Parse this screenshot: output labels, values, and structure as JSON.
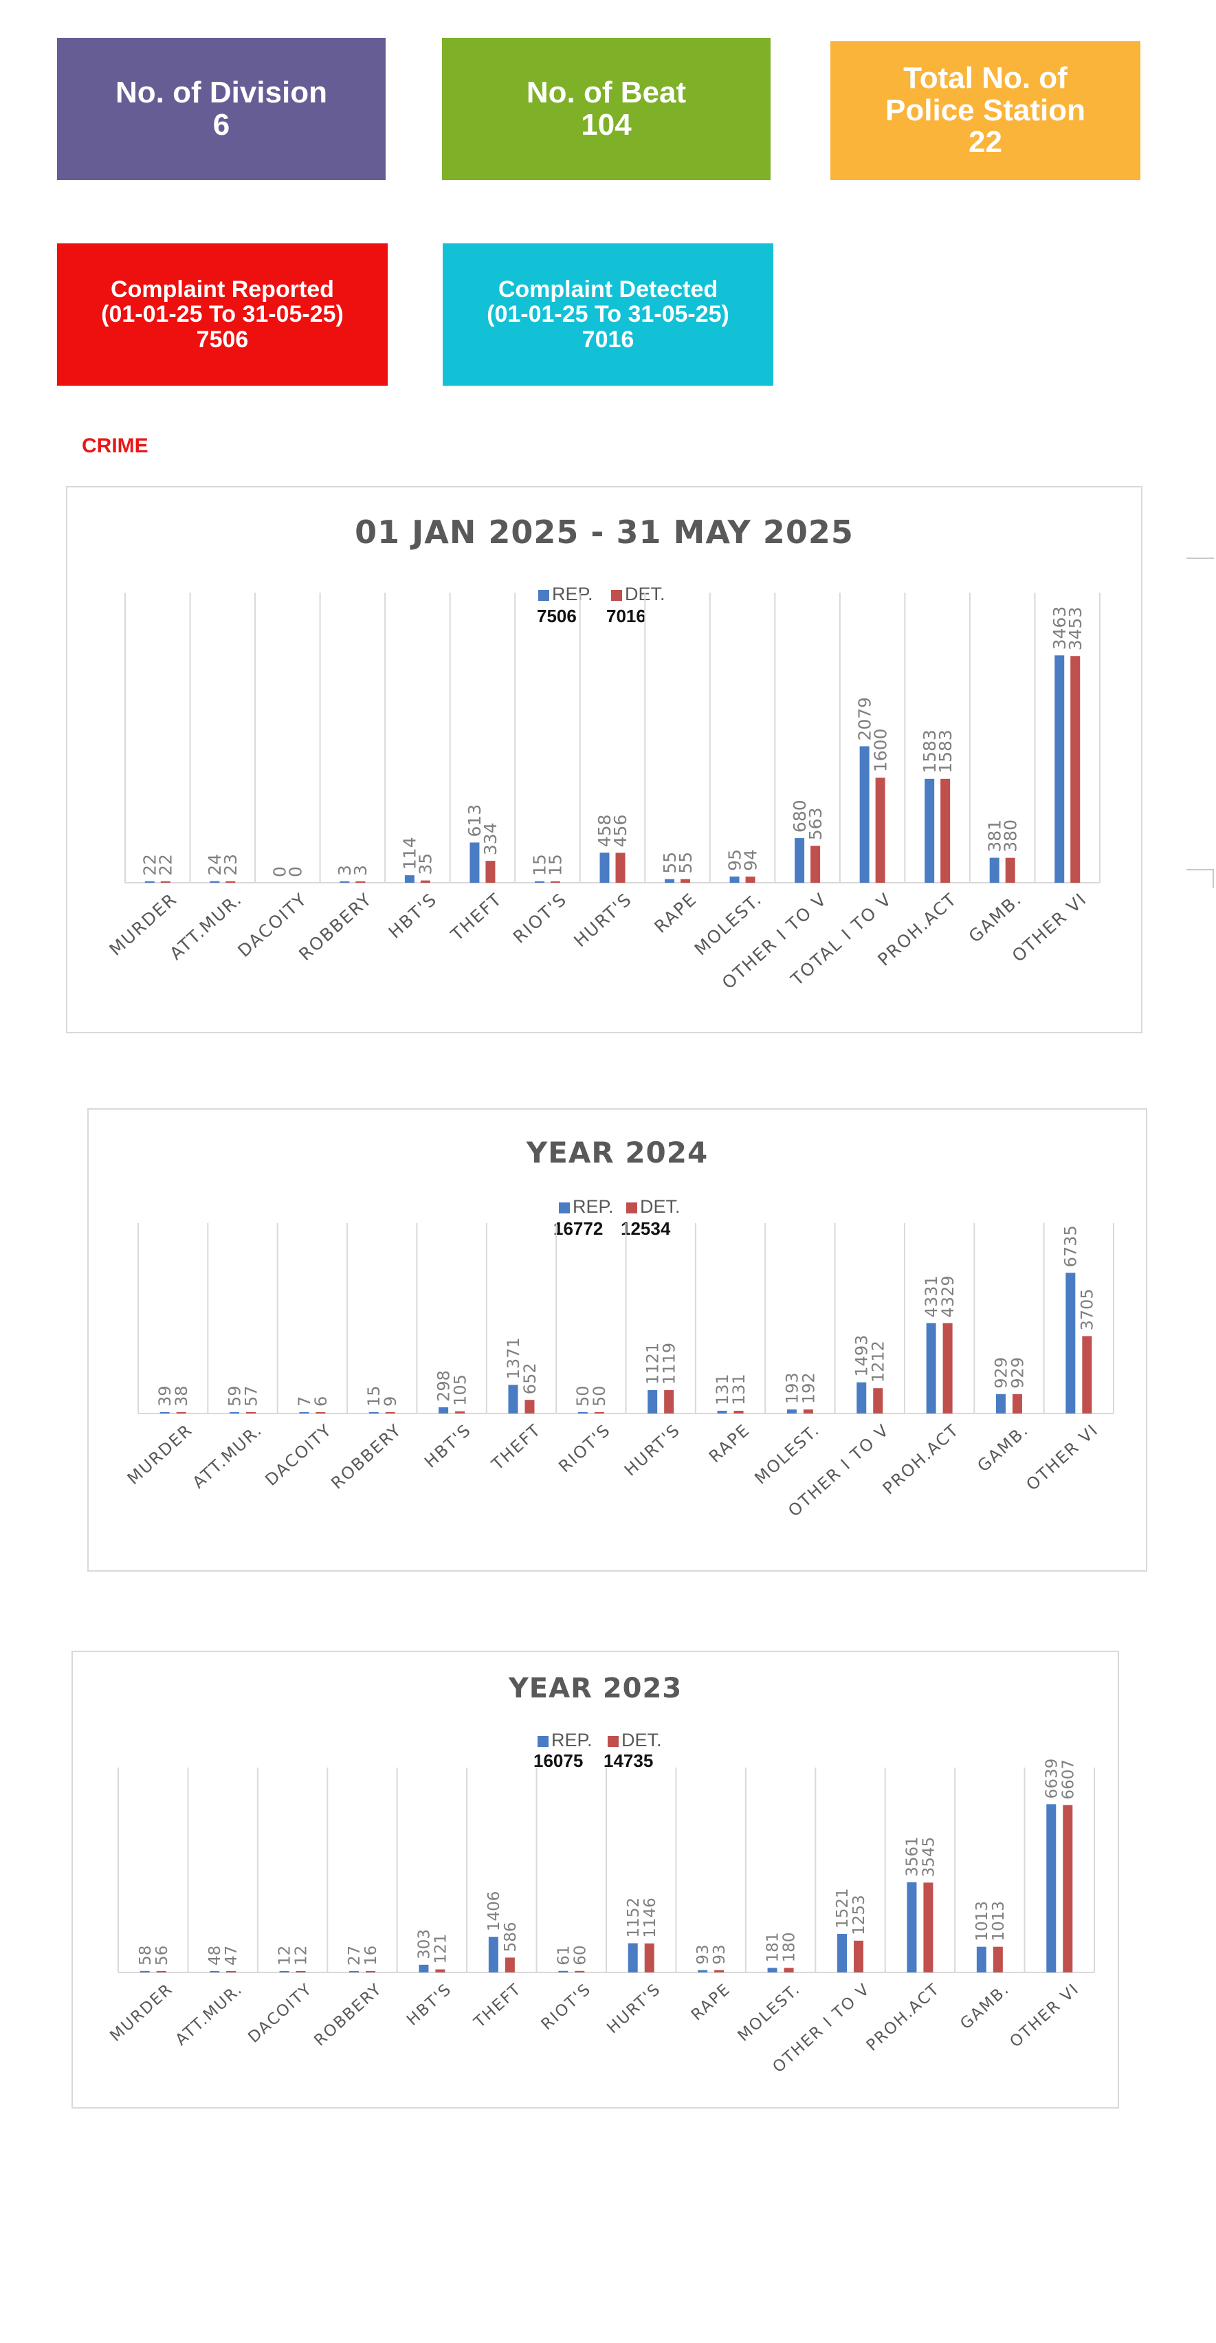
{
  "cards": {
    "division": {
      "lines": [
        "No. of Division",
        "6"
      ],
      "color": "#675d95"
    },
    "beat": {
      "lines": [
        "No. of Beat",
        "104"
      ],
      "color": "#7eb028"
    },
    "station": {
      "lines": [
        "Total No. of",
        "Police Station",
        "22"
      ],
      "color": "#fbb43a"
    },
    "reported": {
      "lines": [
        "Complaint Reported",
        "(01-01-25 To 31-05-25)",
        "7506"
      ],
      "color": "#ee0f0f"
    },
    "detected": {
      "lines": [
        "Complaint Detected",
        "(01-01-25 To 31-05-25)",
        "7016"
      ],
      "color": "#13c1d6"
    }
  },
  "section_label": "CRIME",
  "colors": {
    "rep": "#4a7cc4",
    "det": "#c0504d",
    "label": "#7f7f7f",
    "grid": "#d9d9d9"
  },
  "chart_data": [
    {
      "type": "bar",
      "title": "01 JAN 2025 - 31 MAY 2025",
      "categories": [
        "MURDER",
        "ATT.MUR.",
        "DACOITY",
        "ROBBERY",
        "HBT'S",
        "THEFT",
        "RIOT'S",
        "HURT'S",
        "RAPE",
        "MOLEST.",
        "OTHER I TO V",
        "TOTAL I TO V",
        "PROH.ACT",
        "GAMB.",
        "OTHER VI"
      ],
      "series": [
        {
          "name": "REP.",
          "total": "7506",
          "values": [
            22,
            24,
            0,
            3,
            114,
            613,
            15,
            458,
            55,
            95,
            680,
            2079,
            1583,
            381,
            3463
          ]
        },
        {
          "name": "DET.",
          "total": "7016",
          "values": [
            22,
            23,
            0,
            3,
            35,
            334,
            15,
            456,
            55,
            94,
            563,
            1600,
            1583,
            380,
            3453
          ]
        }
      ],
      "xlabel": "",
      "ylabel": "",
      "ylim": [
        0,
        4000
      ],
      "grid": "vertical",
      "legend": "top-center"
    },
    {
      "type": "bar",
      "title": "YEAR 2024",
      "categories": [
        "MURDER",
        "ATT.MUR.",
        "DACOITY",
        "ROBBERY",
        "HBT'S",
        "THEFT",
        "RIOT'S",
        "HURT'S",
        "RAPE",
        "MOLEST.",
        "OTHER I TO V",
        "PROH.ACT",
        "GAMB.",
        "OTHER VI"
      ],
      "series": [
        {
          "name": "REP.",
          "total": "16772",
          "values": [
            39,
            59,
            7,
            15,
            298,
            1371,
            50,
            1121,
            131,
            193,
            1493,
            4331,
            929,
            6735
          ]
        },
        {
          "name": "DET.",
          "total": "12534",
          "values": [
            38,
            57,
            6,
            9,
            105,
            652,
            50,
            1119,
            131,
            192,
            1212,
            4329,
            929,
            3705
          ]
        }
      ],
      "xlabel": "",
      "ylabel": "",
      "ylim": [
        0,
        7800
      ],
      "grid": "vertical",
      "legend": "top-center"
    },
    {
      "type": "bar",
      "title": "YEAR 2023",
      "categories": [
        "MURDER",
        "ATT.MUR.",
        "DACOITY",
        "ROBBERY",
        "HBT'S",
        "THEFT",
        "RIOT'S",
        "HURT'S",
        "RAPE",
        "MOLEST.",
        "OTHER I TO V",
        "PROH.ACT",
        "GAMB.",
        "OTHER VI"
      ],
      "series": [
        {
          "name": "REP.",
          "total": "16075",
          "values": [
            58,
            48,
            12,
            27,
            303,
            1406,
            61,
            1152,
            93,
            181,
            1521,
            3561,
            1013,
            6639
          ]
        },
        {
          "name": "DET.",
          "total": "14735",
          "values": [
            56,
            47,
            12,
            16,
            121,
            586,
            60,
            1146,
            93,
            180,
            1253,
            3545,
            1013,
            6607
          ]
        }
      ],
      "xlabel": "",
      "ylabel": "",
      "ylim": [
        0,
        7000
      ],
      "grid": "vertical",
      "legend": "top-center"
    }
  ]
}
